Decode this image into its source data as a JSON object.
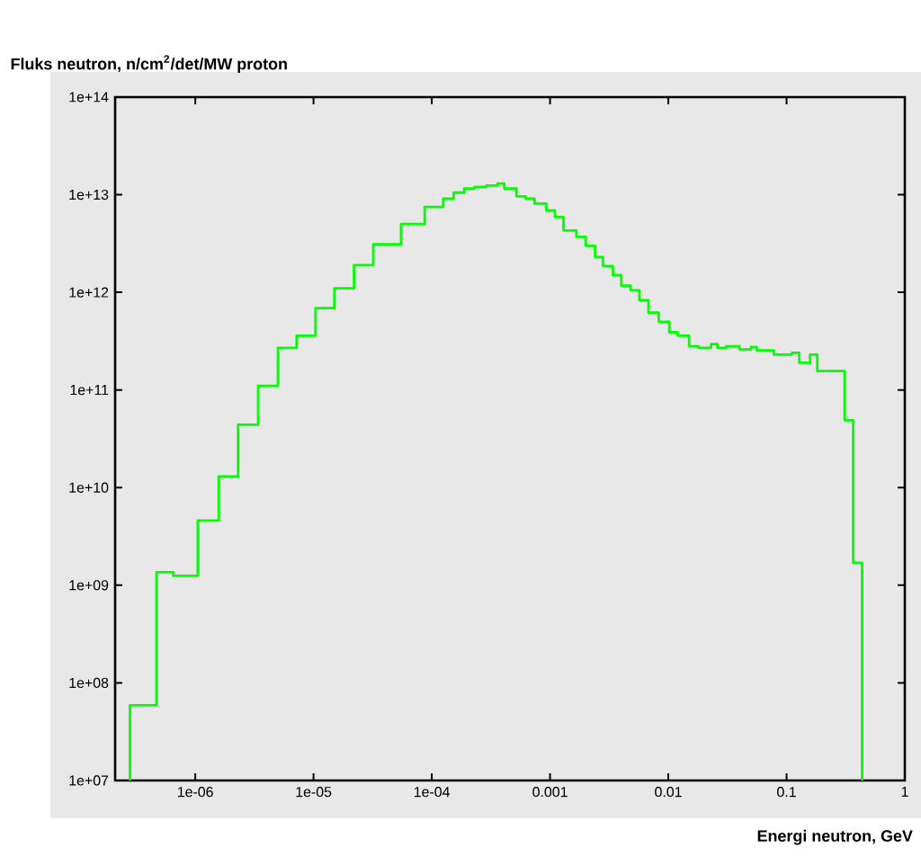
{
  "chart_data": {
    "type": "step",
    "xlabel": "Energi neutron, GeV",
    "ylabel": "Fluks neutron, n/cm$^{2}$/det/MW proton",
    "log": "xy",
    "grid": false,
    "xlim": [
      2.1e-07,
      1
    ],
    "ylim": [
      10000000.0,
      100000000000000.0
    ],
    "xticks": [
      {
        "value": 1e-06,
        "label": "1e-06"
      },
      {
        "value": 1e-05,
        "label": "1e-05"
      },
      {
        "value": 0.0001,
        "label": "1e-04"
      },
      0.001,
      0.01,
      0.1,
      1
    ],
    "yticks": [
      {
        "value": 10000000.0,
        "label": "1e+07"
      },
      {
        "value": 100000000.0,
        "label": "1e+08"
      },
      {
        "value": 1000000000.0,
        "label": "1e+09"
      },
      {
        "value": 10000000000.0,
        "label": "1e+10"
      },
      {
        "value": 100000000000.0,
        "label": "1e+11"
      },
      {
        "value": 1000000000000.0,
        "label": "1e+12"
      },
      {
        "value": 10000000000000.0,
        "label": "1e+13"
      },
      {
        "value": 100000000000000.0,
        "label": "1e+14"
      }
    ],
    "series": [
      {
        "color": "#00ff00",
        "x": [
          2.8e-07,
          2.8e-07,
          4.7e-07,
          6.5e-07,
          1.05e-06,
          1.58e-06,
          2.3e-06,
          3.4e-06,
          5e-06,
          7.2e-06,
          1.04e-05,
          1.5e-05,
          2.2e-05,
          3.2e-05,
          5.5e-05,
          8.7e-05,
          0.000125,
          0.000153,
          0.000188,
          0.00023,
          0.00029,
          0.00036,
          0.00041,
          0.00052,
          0.00062,
          0.00074,
          0.00093,
          0.0011,
          0.0013,
          0.00167,
          0.002,
          0.0024,
          0.0028,
          0.0034,
          0.004,
          0.0048,
          0.0057,
          0.0068,
          0.0083,
          0.0102,
          0.012,
          0.015,
          0.018,
          0.023,
          0.026,
          0.031,
          0.04,
          0.05,
          0.056,
          0.078,
          0.111,
          0.128,
          0.158,
          0.182,
          0.31,
          0.366,
          0.435
        ],
        "values": [
          10000000.0,
          59000000.0,
          1360000000.0,
          1250000000.0,
          4600000000.0,
          13000000000.0,
          44000000000.0,
          110000000000.0,
          270000000000.0,
          360000000000.0,
          690000000000.0,
          1100000000000.0,
          1900000000000.0,
          3100000000000.0,
          5000000000000.0,
          7500000000000.0,
          9100000000000.0,
          10500000000000.0,
          11600000000000.0,
          12000000000000.0,
          12400000000000.0,
          13000000000000.0,
          11600000000000.0,
          9600000000000.0,
          9100000000000.0,
          8100000000000.0,
          6900000000000.0,
          5900000000000.0,
          4300000000000.0,
          3700000000000.0,
          3000000000000.0,
          2300000000000.0,
          1860000000000.0,
          1500000000000.0,
          1170000000000.0,
          1050000000000.0,
          830000000000.0,
          620000000000.0,
          500000000000.0,
          390000000000.0,
          360000000000.0,
          280000000000.0,
          270000000000.0,
          295000000000.0,
          270000000000.0,
          280000000000.0,
          260000000000.0,
          275000000000.0,
          255000000000.0,
          230000000000.0,
          240000000000.0,
          190000000000.0,
          230000000000.0,
          156000000000.0,
          49000000000.0,
          1700000000.0,
          10000000.0
        ]
      }
    ]
  }
}
